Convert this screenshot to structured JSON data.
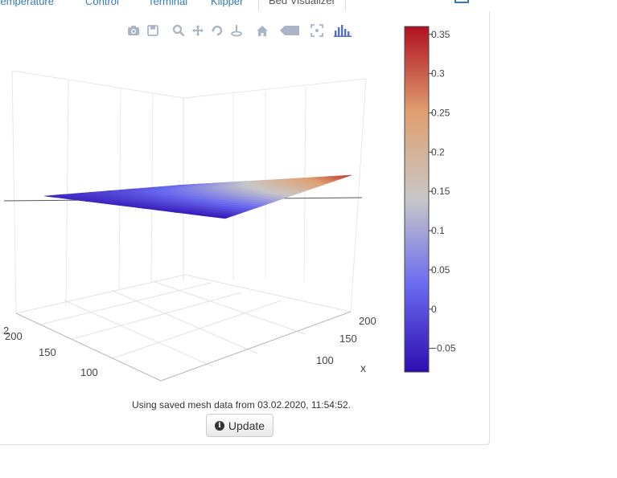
{
  "tabs": {
    "items": [
      {
        "label": "Temperature"
      },
      {
        "label": "Control"
      },
      {
        "label": "Terminal"
      },
      {
        "label": "Klipper"
      },
      {
        "label": "Bed Visualizer",
        "active": true
      }
    ]
  },
  "modebar": {
    "icons": [
      "camera-icon",
      "save-icon",
      "zoom-icon",
      "pan-icon",
      "orbit-icon",
      "turntable-icon",
      "home-icon",
      "hover-closest-icon",
      "spike-lines-icon",
      "plotly-logo-icon"
    ]
  },
  "colorscale": [
    "#2e0db0",
    "#6a6af0",
    "#c7c7c7",
    "#e0a070",
    "#b01020"
  ],
  "chart_data": {
    "type": "surface",
    "x_axis": {
      "label": "x",
      "ticks": [
        100,
        150,
        200
      ]
    },
    "y_axis": {
      "ticks": [
        100,
        150,
        200
      ]
    },
    "z_axis": {
      "ticks": [
        2
      ]
    },
    "colorbar": {
      "ticks": [
        0.35,
        0.3,
        0.25,
        0.2,
        0.15,
        0.1,
        0.05,
        0,
        -0.05
      ],
      "range": [
        -0.08,
        0.36
      ]
    },
    "surface_corner_values": {
      "left": -0.05,
      "back": 0.02,
      "front": -0.07,
      "right": 0.33
    }
  },
  "status": {
    "text": "Using saved mesh data from 03.02.2020, 11:54:52."
  },
  "update_button": {
    "label": "Update",
    "icon": "info-icon"
  }
}
